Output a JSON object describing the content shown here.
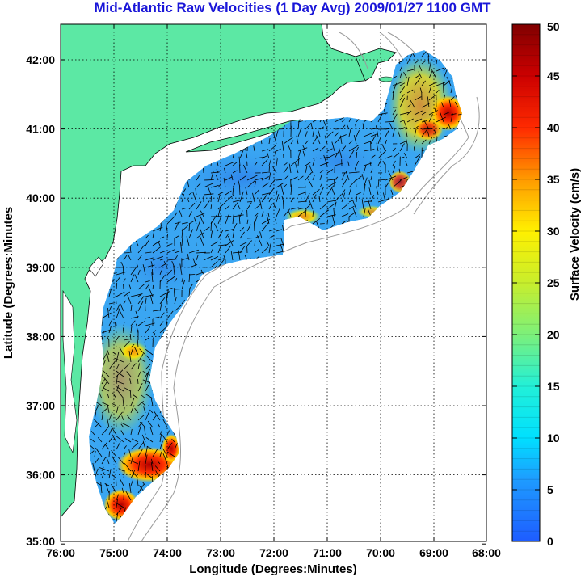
{
  "title": "Mid-Atlantic Raw Velocities (1 Day Avg) 2009/01/27 1100 GMT",
  "xlabel": "Longitude (Degrees:Minutes)",
  "ylabel": "Latitude (Degrees:Minutes",
  "x_ticks": [
    "76:00",
    "75:00",
    "74:00",
    "73:00",
    "72:00",
    "71:00",
    "70:00",
    "69:00",
    "68:00"
  ],
  "y_ticks": [
    "42:00",
    "41:00",
    "40:00",
    "39:00",
    "38:00",
    "37:00",
    "36:00",
    "35:00"
  ],
  "colorbar": {
    "label": "Surface Velocity (cm/s)",
    "ticks": [
      "50",
      "45",
      "40",
      "35",
      "30",
      "25",
      "20",
      "15",
      "10",
      "5",
      "0"
    ],
    "range": [
      0,
      50
    ]
  },
  "colors": {
    "land": "#5ce8a4",
    "title": "#1a16d8",
    "field_base": "#3aa6f2",
    "contour": "#9a9a9a"
  }
}
